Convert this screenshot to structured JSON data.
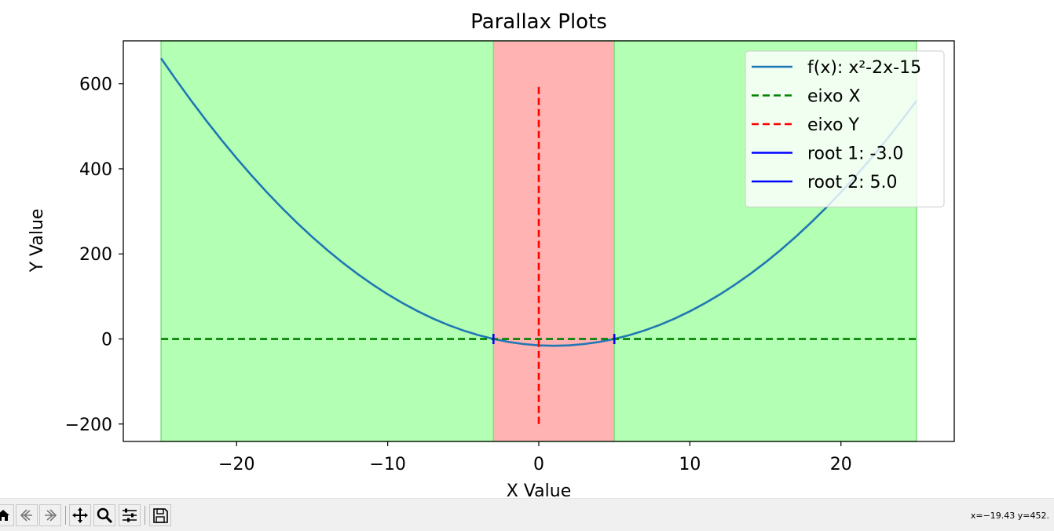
{
  "window": {
    "toolbar": {
      "home_icon": "home-icon",
      "back_icon": "back-arrow-icon",
      "forward_icon": "forward-arrow-icon",
      "pan_icon": "pan-move-icon",
      "zoom_icon": "zoom-magnifier-icon",
      "configure_icon": "configure-subplots-icon",
      "save_icon": "save-floppy-icon",
      "coordinates": "x=−19.43 y=452."
    }
  },
  "chart_data": {
    "type": "line",
    "title": "Parallax Plots",
    "xlabel": "X Value",
    "ylabel": "Y Value",
    "xlim": [
      -27.5,
      27.5
    ],
    "ylim": [
      -241,
      701
    ],
    "xticks": [
      -20,
      -10,
      0,
      10,
      20
    ],
    "xtick_labels": [
      "−20",
      "−10",
      "0",
      "10",
      "20"
    ],
    "yticks": [
      -200,
      0,
      200,
      400,
      600
    ],
    "ytick_labels": [
      "−200",
      "0",
      "200",
      "400",
      "600"
    ],
    "grid": false,
    "legend_position": "top-right",
    "shaded_regions": [
      {
        "x_start": -25,
        "x_end": -3,
        "color": "#b3ffb3",
        "edge": "#7fdf7f"
      },
      {
        "x_start": -3,
        "x_end": 5,
        "color": "#ffb3b3",
        "edge": "#7fdf7f"
      },
      {
        "x_start": 5,
        "x_end": 25,
        "color": "#b3ffb3",
        "edge": "#7fdf7f"
      }
    ],
    "series": [
      {
        "name": "f(x): x²-2x-15",
        "style": "solid",
        "color": "#1f77b4",
        "x": [
          -25,
          -24,
          -23,
          -22,
          -21,
          -20,
          -19,
          -18,
          -17,
          -16,
          -15,
          -14,
          -13,
          -12,
          -11,
          -10,
          -9,
          -8,
          -7,
          -6,
          -5,
          -4,
          -3,
          -2,
          -1,
          0,
          1,
          2,
          3,
          4,
          5,
          6,
          7,
          8,
          9,
          10,
          11,
          12,
          13,
          14,
          15,
          16,
          17,
          18,
          19,
          20,
          21,
          22,
          23,
          24,
          25
        ],
        "y": [
          660,
          609,
          560,
          513,
          468,
          425,
          384,
          345,
          308,
          273,
          240,
          209,
          180,
          153,
          128,
          105,
          84,
          65,
          48,
          33,
          20,
          9,
          0,
          -7,
          -12,
          -15,
          -16,
          -15,
          -12,
          -7,
          0,
          9,
          20,
          33,
          48,
          65,
          84,
          105,
          128,
          153,
          180,
          209,
          240,
          273,
          308,
          345,
          384,
          425,
          468,
          513,
          560
        ]
      },
      {
        "name": "eixo X",
        "style": "dashed",
        "color": "#008000",
        "x": [
          -25,
          25
        ],
        "y": [
          0,
          0
        ]
      },
      {
        "name": "eixo Y",
        "style": "dashed",
        "color": "#ff0000",
        "x": [
          0,
          0
        ],
        "y": [
          -200,
          600
        ]
      },
      {
        "name": "root 1: -3.0",
        "style": "solid",
        "color": "#0000ff",
        "x": [
          -3,
          -3
        ],
        "y": [
          -12,
          12
        ]
      },
      {
        "name": "root 2: 5.0",
        "style": "solid",
        "color": "#0000ff",
        "x": [
          5,
          5
        ],
        "y": [
          -12,
          12
        ]
      }
    ]
  }
}
